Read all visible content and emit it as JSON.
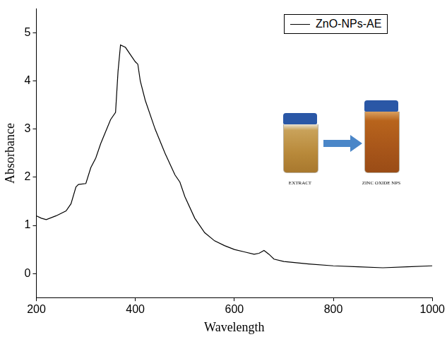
{
  "chart_data": {
    "type": "line",
    "x_label": "Wavelength",
    "y_label": "Absorbance",
    "x": [
      200,
      210,
      220,
      240,
      260,
      270,
      280,
      285,
      300,
      310,
      320,
      330,
      340,
      350,
      360,
      365,
      370,
      380,
      390,
      400,
      405,
      410,
      420,
      440,
      460,
      480,
      490,
      500,
      520,
      540,
      560,
      580,
      600,
      620,
      640,
      650,
      660,
      670,
      680,
      700,
      750,
      800,
      850,
      900,
      950,
      1000
    ],
    "series": [
      {
        "name": "ZnO-NPs-AE",
        "color": "#000000",
        "values": [
          1.2,
          1.15,
          1.12,
          1.2,
          1.3,
          1.45,
          1.8,
          1.85,
          1.87,
          2.2,
          2.4,
          2.7,
          2.95,
          3.2,
          3.35,
          4.2,
          4.75,
          4.7,
          4.55,
          4.4,
          4.35,
          4.0,
          3.6,
          3.0,
          2.5,
          2.05,
          1.9,
          1.6,
          1.15,
          0.85,
          0.68,
          0.58,
          0.5,
          0.45,
          0.4,
          0.42,
          0.48,
          0.4,
          0.3,
          0.25,
          0.2,
          0.16,
          0.14,
          0.12,
          0.14,
          0.16
        ]
      }
    ],
    "xlim": [
      200,
      1000
    ],
    "xticks": [
      200,
      400,
      600,
      800,
      1000
    ],
    "ylim": [
      -0.5,
      5.5
    ],
    "yticks": [
      0,
      1,
      2,
      3,
      4,
      5
    ],
    "grid": false,
    "legend": "upper right",
    "annotations": [
      "EXTRACT",
      "ZINC OXIDE NPS"
    ]
  }
}
